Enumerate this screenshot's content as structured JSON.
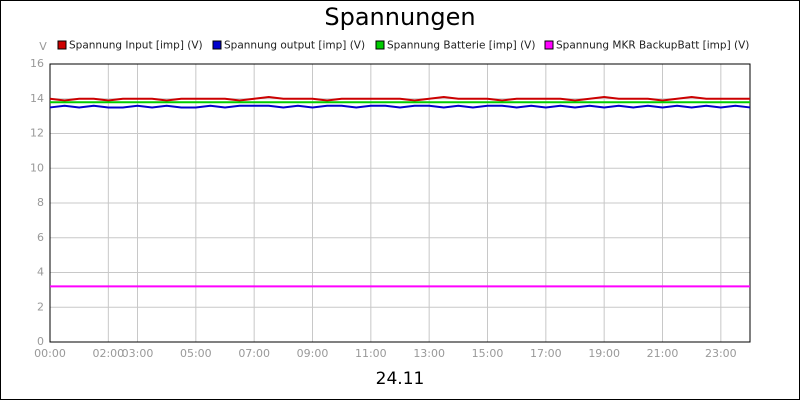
{
  "chart_data": {
    "type": "line",
    "title": "Spannungen",
    "y_label": "V",
    "x_label": "24.11",
    "x": [
      0,
      0.5,
      1,
      1.5,
      2,
      2.5,
      3,
      3.5,
      4,
      4.5,
      5,
      5.5,
      6,
      6.5,
      7,
      7.5,
      8,
      8.5,
      9,
      9.5,
      10,
      10.5,
      11,
      11.5,
      12,
      12.5,
      13,
      13.5,
      14,
      14.5,
      15,
      15.5,
      16,
      16.5,
      17,
      17.5,
      18,
      18.5,
      19,
      19.5,
      20,
      20.5,
      21,
      21.5,
      22,
      22.5,
      23,
      23.5,
      24
    ],
    "series": [
      {
        "name": "Spannung Input [imp] (V)",
        "color": "#cc0000",
        "values": [
          14.0,
          13.9,
          14.0,
          14.0,
          13.9,
          14.0,
          14.0,
          14.0,
          13.9,
          14.0,
          14.0,
          14.0,
          14.0,
          13.9,
          14.0,
          14.1,
          14.0,
          14.0,
          14.0,
          13.9,
          14.0,
          14.0,
          14.0,
          14.0,
          14.0,
          13.9,
          14.0,
          14.1,
          14.0,
          14.0,
          14.0,
          13.9,
          14.0,
          14.0,
          14.0,
          14.0,
          13.9,
          14.0,
          14.1,
          14.0,
          14.0,
          14.0,
          13.9,
          14.0,
          14.1,
          14.0,
          14.0,
          14.0,
          14.0
        ]
      },
      {
        "name": "Spannung output [imp] (V)",
        "color": "#0000cc",
        "values": [
          13.5,
          13.6,
          13.5,
          13.6,
          13.5,
          13.5,
          13.6,
          13.5,
          13.6,
          13.5,
          13.5,
          13.6,
          13.5,
          13.6,
          13.6,
          13.6,
          13.5,
          13.6,
          13.5,
          13.6,
          13.6,
          13.5,
          13.6,
          13.6,
          13.5,
          13.6,
          13.6,
          13.5,
          13.6,
          13.5,
          13.6,
          13.6,
          13.5,
          13.6,
          13.5,
          13.6,
          13.5,
          13.6,
          13.5,
          13.6,
          13.5,
          13.6,
          13.5,
          13.6,
          13.5,
          13.6,
          13.5,
          13.6,
          13.5
        ]
      },
      {
        "name": "Spannung Batterie [imp] (V)",
        "color": "#00cc00",
        "values": [
          13.8,
          13.8,
          13.8,
          13.8,
          13.8,
          13.8,
          13.8,
          13.8,
          13.8,
          13.8,
          13.8,
          13.8,
          13.8,
          13.8,
          13.8,
          13.8,
          13.8,
          13.8,
          13.8,
          13.8,
          13.8,
          13.8,
          13.8,
          13.8,
          13.8,
          13.8,
          13.8,
          13.8,
          13.8,
          13.8,
          13.8,
          13.8,
          13.8,
          13.8,
          13.8,
          13.8,
          13.8,
          13.8,
          13.8,
          13.8,
          13.8,
          13.8,
          13.8,
          13.8,
          13.8,
          13.8,
          13.8,
          13.8,
          13.8
        ]
      },
      {
        "name": "Spannung MKR BackupBatt [imp] (V)",
        "color": "#ff00ff",
        "values": [
          3.2,
          3.2,
          3.2,
          3.2,
          3.2,
          3.2,
          3.2,
          3.2,
          3.2,
          3.2,
          3.2,
          3.2,
          3.2,
          3.2,
          3.2,
          3.2,
          3.2,
          3.2,
          3.2,
          3.2,
          3.2,
          3.2,
          3.2,
          3.2,
          3.2,
          3.2,
          3.2,
          3.2,
          3.2,
          3.2,
          3.2,
          3.2,
          3.2,
          3.2,
          3.2,
          3.2,
          3.2,
          3.2,
          3.2,
          3.2,
          3.2,
          3.2,
          3.2,
          3.2,
          3.2,
          3.2,
          3.2,
          3.2,
          3.2
        ]
      }
    ],
    "xlim": [
      0,
      24
    ],
    "xticks": [
      {
        "value": 0,
        "label": "00:00"
      },
      {
        "value": 2,
        "label": "02:00"
      },
      {
        "value": 3,
        "label": "03:00"
      },
      {
        "value": 5,
        "label": "05:00"
      },
      {
        "value": 7,
        "label": "07:00"
      },
      {
        "value": 9,
        "label": "09:00"
      },
      {
        "value": 11,
        "label": "11:00"
      },
      {
        "value": 13,
        "label": "13:00"
      },
      {
        "value": 15,
        "label": "15:00"
      },
      {
        "value": 17,
        "label": "17:00"
      },
      {
        "value": 19,
        "label": "19:00"
      },
      {
        "value": 21,
        "label": "21:00"
      },
      {
        "value": 23,
        "label": "23:00"
      }
    ],
    "ylim": [
      0,
      16
    ],
    "yticks": [
      0,
      2,
      4,
      6,
      8,
      10,
      12,
      14,
      16
    ],
    "grid": true
  }
}
